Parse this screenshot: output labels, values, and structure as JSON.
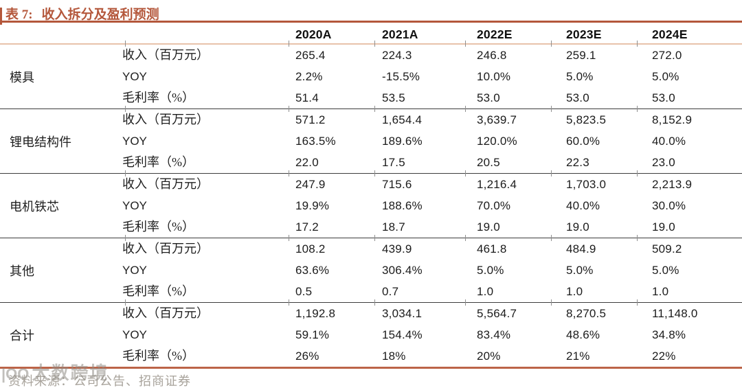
{
  "title": {
    "prefix": "表 7:",
    "text": "收入拆分及盈利预测"
  },
  "header": {
    "columns": [
      "2020A",
      "2021A",
      "2022E",
      "2023E",
      "2024E"
    ]
  },
  "table": {
    "groups": [
      {
        "name": "模具",
        "rows": [
          {
            "label": "收入（百万元）",
            "values": [
              "265.4",
              "224.3",
              "246.8",
              "259.1",
              "272.0"
            ]
          },
          {
            "label": "YOY",
            "values": [
              "2.2%",
              "-15.5%",
              "10.0%",
              "5.0%",
              "5.0%"
            ]
          },
          {
            "label": "毛利率（%）",
            "values": [
              "51.4",
              "53.5",
              "53.0",
              "53.0",
              "53.0"
            ]
          }
        ]
      },
      {
        "name": "锂电结构件",
        "rows": [
          {
            "label": "收入（百万元）",
            "values": [
              "571.2",
              "1,654.4",
              "3,639.7",
              "5,823.5",
              "8,152.9"
            ]
          },
          {
            "label": "YOY",
            "values": [
              "163.5%",
              "189.6%",
              "120.0%",
              "60.0%",
              "40.0%"
            ]
          },
          {
            "label": "毛利率（%）",
            "values": [
              "22.0",
              "17.5",
              "20.5",
              "22.3",
              "23.0"
            ]
          }
        ]
      },
      {
        "name": "电机铁芯",
        "rows": [
          {
            "label": "收入（百万元）",
            "values": [
              "247.9",
              "715.6",
              "1,216.4",
              "1,703.0",
              "2,213.9"
            ]
          },
          {
            "label": "YOY",
            "values": [
              "19.9%",
              "188.6%",
              "70.0%",
              "40.0%",
              "30.0%"
            ]
          },
          {
            "label": "毛利率（%）",
            "values": [
              "17.2",
              "18.7",
              "19.0",
              "19.0",
              "19.0"
            ]
          }
        ]
      },
      {
        "name": "其他",
        "rows": [
          {
            "label": "收入（百万元）",
            "values": [
              "108.2",
              "439.9",
              "461.8",
              "484.9",
              "509.2"
            ]
          },
          {
            "label": "YOY",
            "values": [
              "63.6%",
              "306.4%",
              "5.0%",
              "5.0%",
              "5.0%"
            ]
          },
          {
            "label": "毛利率（%）",
            "values": [
              "0.5",
              "0.7",
              "1.0",
              "1.0",
              "1.0"
            ]
          }
        ]
      },
      {
        "name": "合计",
        "rows": [
          {
            "label": "收入（百万元）",
            "values": [
              "1,192.8",
              "3,034.1",
              "5,564.7",
              "8,270.5",
              "11,148.0"
            ]
          },
          {
            "label": "YOY",
            "values": [
              "59.1%",
              "154.4%",
              "83.4%",
              "48.6%",
              "34.8%"
            ]
          },
          {
            "label": "毛利率（%）",
            "values": [
              "26%",
              "18%",
              "20%",
              "21%",
              "22%"
            ]
          }
        ]
      }
    ]
  },
  "footer": {
    "source": "资料来源：公司公告、招商证券"
  },
  "watermark": {
    "logo": "|OO",
    "text": "大数跨境"
  },
  "colors": {
    "accent": "#B4573B",
    "header_underline": "#E8C2AA",
    "group_separator": "#3C3C3C",
    "bottom_rule": "#BC6448",
    "footer_text": "#A8A39B",
    "watermark": "#8F8B85",
    "value_text": "#1b1b1b"
  }
}
